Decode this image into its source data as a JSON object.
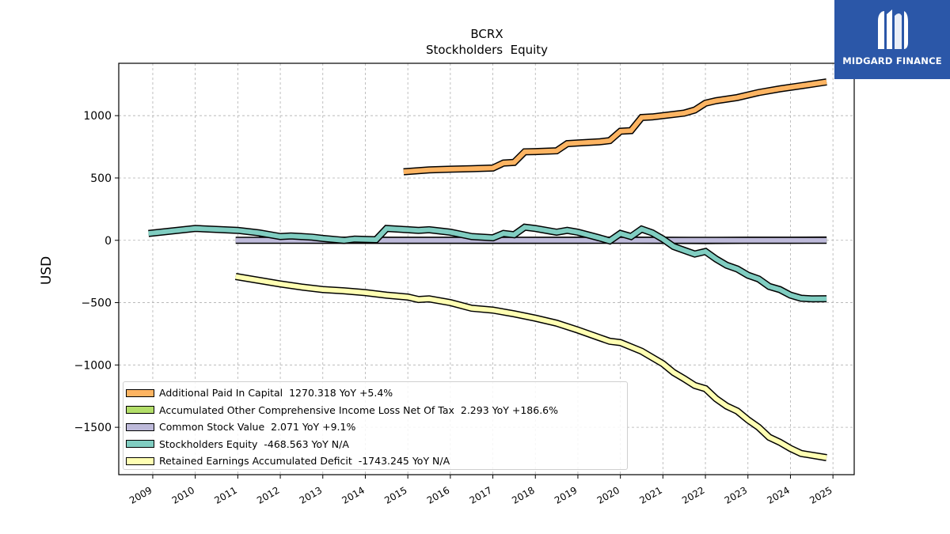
{
  "branding": {
    "logo_text": "MIDGARD FINANCE",
    "logo_color": "#2b57a8"
  },
  "chart_data": {
    "type": "line",
    "title": "BCRX",
    "subtitle": "Stockholders  Equity",
    "xlabel": "",
    "ylabel": "USD",
    "xlim": [
      2008.2,
      2025.5
    ],
    "ylim": [
      -1880,
      1420
    ],
    "grid": true,
    "legend_position": "lower-left",
    "x_ticks": [
      "2009",
      "2010",
      "2011",
      "2012",
      "2013",
      "2014",
      "2015",
      "2016",
      "2017",
      "2018",
      "2019",
      "2020",
      "2021",
      "2022",
      "2023",
      "2024",
      "2025"
    ],
    "y_ticks": [
      "1000",
      "500",
      "0",
      "−500",
      "−1000",
      "−1500"
    ],
    "y_tick_values": [
      1000,
      500,
      0,
      -500,
      -1000,
      -1500
    ],
    "series": [
      {
        "name": "Additional Paid In Capital",
        "legend_label": "Additional Paid In Capital  1270.318 YoY +5.4%",
        "color": "#fdb462",
        "points": [
          [
            2014.9,
            550
          ],
          [
            2015.5,
            565
          ],
          [
            2016.0,
            570
          ],
          [
            2016.5,
            575
          ],
          [
            2017.0,
            580
          ],
          [
            2017.25,
            620
          ],
          [
            2017.5,
            625
          ],
          [
            2017.75,
            710
          ],
          [
            2018.0,
            712
          ],
          [
            2018.5,
            718
          ],
          [
            2018.75,
            775
          ],
          [
            2019.0,
            780
          ],
          [
            2019.5,
            790
          ],
          [
            2019.75,
            800
          ],
          [
            2020.0,
            875
          ],
          [
            2020.25,
            880
          ],
          [
            2020.5,
            985
          ],
          [
            2020.75,
            990
          ],
          [
            2021.0,
            1000
          ],
          [
            2021.5,
            1020
          ],
          [
            2021.75,
            1045
          ],
          [
            2022.0,
            1100
          ],
          [
            2022.25,
            1120
          ],
          [
            2022.75,
            1145
          ],
          [
            2023.25,
            1185
          ],
          [
            2023.75,
            1215
          ],
          [
            2024.25,
            1240
          ],
          [
            2024.85,
            1270
          ]
        ]
      },
      {
        "name": "Accumulated Other Comprehensive Income Loss Net Of Tax",
        "legend_label": "Accumulated Other Comprehensive Income Loss Net Of Tax  2.293 YoY +186.6%",
        "color": "#b3de69",
        "points": [
          [
            2011.5,
            5
          ],
          [
            2012.0,
            2
          ],
          [
            2013.0,
            1
          ],
          [
            2014.0,
            1
          ],
          [
            2015.0,
            0
          ],
          [
            2016.0,
            0
          ],
          [
            2017.0,
            -1
          ],
          [
            2018.0,
            0
          ],
          [
            2019.0,
            1
          ],
          [
            2020.0,
            2
          ],
          [
            2021.0,
            0
          ],
          [
            2022.0,
            -2
          ],
          [
            2023.0,
            1
          ],
          [
            2024.0,
            1
          ],
          [
            2024.85,
            2.293
          ]
        ]
      },
      {
        "name": "Common Stock Value",
        "legend_label": "Common Stock Value  2.071 YoY +9.1%",
        "color": "#bebada",
        "points": [
          [
            2010.95,
            0
          ],
          [
            2024.85,
            0
          ]
        ]
      },
      {
        "name": "Stockholders Equity",
        "legend_label": "Stockholders Equity  -468.563 YoY N/A",
        "color": "#80cdc1",
        "points": [
          [
            2008.9,
            55
          ],
          [
            2010.0,
            95
          ],
          [
            2011.0,
            80
          ],
          [
            2011.5,
            60
          ],
          [
            2012.0,
            30
          ],
          [
            2012.25,
            35
          ],
          [
            2012.75,
            25
          ],
          [
            2013.0,
            15
          ],
          [
            2013.5,
            0
          ],
          [
            2013.75,
            10
          ],
          [
            2014.25,
            5
          ],
          [
            2014.5,
            95
          ],
          [
            2015.0,
            85
          ],
          [
            2015.25,
            80
          ],
          [
            2015.5,
            85
          ],
          [
            2016.0,
            65
          ],
          [
            2016.5,
            30
          ],
          [
            2017.0,
            20
          ],
          [
            2017.25,
            55
          ],
          [
            2017.5,
            45
          ],
          [
            2017.75,
            105
          ],
          [
            2018.0,
            95
          ],
          [
            2018.5,
            65
          ],
          [
            2018.75,
            80
          ],
          [
            2019.0,
            65
          ],
          [
            2019.5,
            20
          ],
          [
            2019.75,
            -5
          ],
          [
            2020.0,
            55
          ],
          [
            2020.25,
            30
          ],
          [
            2020.5,
            90
          ],
          [
            2020.75,
            60
          ],
          [
            2021.0,
            10
          ],
          [
            2021.25,
            -50
          ],
          [
            2021.5,
            -80
          ],
          [
            2021.75,
            -110
          ],
          [
            2022.0,
            -90
          ],
          [
            2022.25,
            -150
          ],
          [
            2022.5,
            -200
          ],
          [
            2022.75,
            -230
          ],
          [
            2023.0,
            -280
          ],
          [
            2023.25,
            -310
          ],
          [
            2023.5,
            -370
          ],
          [
            2023.75,
            -395
          ],
          [
            2024.0,
            -440
          ],
          [
            2024.25,
            -465
          ],
          [
            2024.5,
            -470
          ],
          [
            2024.85,
            -468.563
          ]
        ]
      },
      {
        "name": "Retained Earnings Accumulated Deficit",
        "legend_label": "Retained Earnings Accumulated Deficit  -1743.245 YoY N/A",
        "color": "#ffffb3",
        "points": [
          [
            2010.95,
            -290
          ],
          [
            2012.0,
            -350
          ],
          [
            2012.5,
            -375
          ],
          [
            2013.0,
            -395
          ],
          [
            2013.5,
            -405
          ],
          [
            2014.0,
            -420
          ],
          [
            2014.5,
            -440
          ],
          [
            2015.0,
            -455
          ],
          [
            2015.25,
            -475
          ],
          [
            2015.5,
            -470
          ],
          [
            2016.0,
            -500
          ],
          [
            2016.5,
            -545
          ],
          [
            2017.0,
            -560
          ],
          [
            2017.5,
            -590
          ],
          [
            2018.0,
            -625
          ],
          [
            2018.5,
            -665
          ],
          [
            2019.0,
            -720
          ],
          [
            2019.5,
            -780
          ],
          [
            2019.75,
            -810
          ],
          [
            2020.0,
            -820
          ],
          [
            2020.5,
            -890
          ],
          [
            2021.0,
            -990
          ],
          [
            2021.25,
            -1060
          ],
          [
            2021.5,
            -1110
          ],
          [
            2021.75,
            -1165
          ],
          [
            2022.0,
            -1190
          ],
          [
            2022.25,
            -1270
          ],
          [
            2022.5,
            -1330
          ],
          [
            2022.75,
            -1370
          ],
          [
            2023.0,
            -1440
          ],
          [
            2023.25,
            -1500
          ],
          [
            2023.5,
            -1580
          ],
          [
            2023.75,
            -1620
          ],
          [
            2024.0,
            -1670
          ],
          [
            2024.25,
            -1710
          ],
          [
            2024.85,
            -1743.245
          ]
        ]
      }
    ]
  }
}
